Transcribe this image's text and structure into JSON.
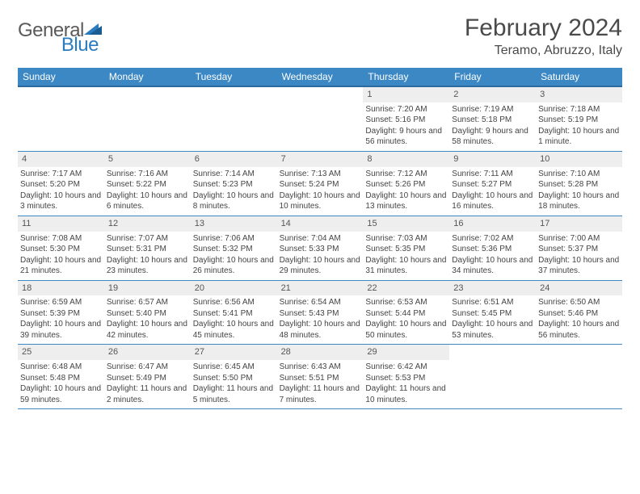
{
  "logo": {
    "text1": "General",
    "text2": "Blue"
  },
  "title": "February 2024",
  "location": "Teramo, Abruzzo, Italy",
  "colors": {
    "header_bg": "#3b88c4",
    "header_border": "#2a6a9e",
    "daynum_bg": "#eeeeee",
    "text": "#444444"
  },
  "day_names": [
    "Sunday",
    "Monday",
    "Tuesday",
    "Wednesday",
    "Thursday",
    "Friday",
    "Saturday"
  ],
  "weeks": [
    [
      null,
      null,
      null,
      null,
      {
        "n": "1",
        "sr": "Sunrise: 7:20 AM",
        "ss": "Sunset: 5:16 PM",
        "dl": "Daylight: 9 hours and 56 minutes."
      },
      {
        "n": "2",
        "sr": "Sunrise: 7:19 AM",
        "ss": "Sunset: 5:18 PM",
        "dl": "Daylight: 9 hours and 58 minutes."
      },
      {
        "n": "3",
        "sr": "Sunrise: 7:18 AM",
        "ss": "Sunset: 5:19 PM",
        "dl": "Daylight: 10 hours and 1 minute."
      }
    ],
    [
      {
        "n": "4",
        "sr": "Sunrise: 7:17 AM",
        "ss": "Sunset: 5:20 PM",
        "dl": "Daylight: 10 hours and 3 minutes."
      },
      {
        "n": "5",
        "sr": "Sunrise: 7:16 AM",
        "ss": "Sunset: 5:22 PM",
        "dl": "Daylight: 10 hours and 6 minutes."
      },
      {
        "n": "6",
        "sr": "Sunrise: 7:14 AM",
        "ss": "Sunset: 5:23 PM",
        "dl": "Daylight: 10 hours and 8 minutes."
      },
      {
        "n": "7",
        "sr": "Sunrise: 7:13 AM",
        "ss": "Sunset: 5:24 PM",
        "dl": "Daylight: 10 hours and 10 minutes."
      },
      {
        "n": "8",
        "sr": "Sunrise: 7:12 AM",
        "ss": "Sunset: 5:26 PM",
        "dl": "Daylight: 10 hours and 13 minutes."
      },
      {
        "n": "9",
        "sr": "Sunrise: 7:11 AM",
        "ss": "Sunset: 5:27 PM",
        "dl": "Daylight: 10 hours and 16 minutes."
      },
      {
        "n": "10",
        "sr": "Sunrise: 7:10 AM",
        "ss": "Sunset: 5:28 PM",
        "dl": "Daylight: 10 hours and 18 minutes."
      }
    ],
    [
      {
        "n": "11",
        "sr": "Sunrise: 7:08 AM",
        "ss": "Sunset: 5:30 PM",
        "dl": "Daylight: 10 hours and 21 minutes."
      },
      {
        "n": "12",
        "sr": "Sunrise: 7:07 AM",
        "ss": "Sunset: 5:31 PM",
        "dl": "Daylight: 10 hours and 23 minutes."
      },
      {
        "n": "13",
        "sr": "Sunrise: 7:06 AM",
        "ss": "Sunset: 5:32 PM",
        "dl": "Daylight: 10 hours and 26 minutes."
      },
      {
        "n": "14",
        "sr": "Sunrise: 7:04 AM",
        "ss": "Sunset: 5:33 PM",
        "dl": "Daylight: 10 hours and 29 minutes."
      },
      {
        "n": "15",
        "sr": "Sunrise: 7:03 AM",
        "ss": "Sunset: 5:35 PM",
        "dl": "Daylight: 10 hours and 31 minutes."
      },
      {
        "n": "16",
        "sr": "Sunrise: 7:02 AM",
        "ss": "Sunset: 5:36 PM",
        "dl": "Daylight: 10 hours and 34 minutes."
      },
      {
        "n": "17",
        "sr": "Sunrise: 7:00 AM",
        "ss": "Sunset: 5:37 PM",
        "dl": "Daylight: 10 hours and 37 minutes."
      }
    ],
    [
      {
        "n": "18",
        "sr": "Sunrise: 6:59 AM",
        "ss": "Sunset: 5:39 PM",
        "dl": "Daylight: 10 hours and 39 minutes."
      },
      {
        "n": "19",
        "sr": "Sunrise: 6:57 AM",
        "ss": "Sunset: 5:40 PM",
        "dl": "Daylight: 10 hours and 42 minutes."
      },
      {
        "n": "20",
        "sr": "Sunrise: 6:56 AM",
        "ss": "Sunset: 5:41 PM",
        "dl": "Daylight: 10 hours and 45 minutes."
      },
      {
        "n": "21",
        "sr": "Sunrise: 6:54 AM",
        "ss": "Sunset: 5:43 PM",
        "dl": "Daylight: 10 hours and 48 minutes."
      },
      {
        "n": "22",
        "sr": "Sunrise: 6:53 AM",
        "ss": "Sunset: 5:44 PM",
        "dl": "Daylight: 10 hours and 50 minutes."
      },
      {
        "n": "23",
        "sr": "Sunrise: 6:51 AM",
        "ss": "Sunset: 5:45 PM",
        "dl": "Daylight: 10 hours and 53 minutes."
      },
      {
        "n": "24",
        "sr": "Sunrise: 6:50 AM",
        "ss": "Sunset: 5:46 PM",
        "dl": "Daylight: 10 hours and 56 minutes."
      }
    ],
    [
      {
        "n": "25",
        "sr": "Sunrise: 6:48 AM",
        "ss": "Sunset: 5:48 PM",
        "dl": "Daylight: 10 hours and 59 minutes."
      },
      {
        "n": "26",
        "sr": "Sunrise: 6:47 AM",
        "ss": "Sunset: 5:49 PM",
        "dl": "Daylight: 11 hours and 2 minutes."
      },
      {
        "n": "27",
        "sr": "Sunrise: 6:45 AM",
        "ss": "Sunset: 5:50 PM",
        "dl": "Daylight: 11 hours and 5 minutes."
      },
      {
        "n": "28",
        "sr": "Sunrise: 6:43 AM",
        "ss": "Sunset: 5:51 PM",
        "dl": "Daylight: 11 hours and 7 minutes."
      },
      {
        "n": "29",
        "sr": "Sunrise: 6:42 AM",
        "ss": "Sunset: 5:53 PM",
        "dl": "Daylight: 11 hours and 10 minutes."
      },
      null,
      null
    ]
  ]
}
